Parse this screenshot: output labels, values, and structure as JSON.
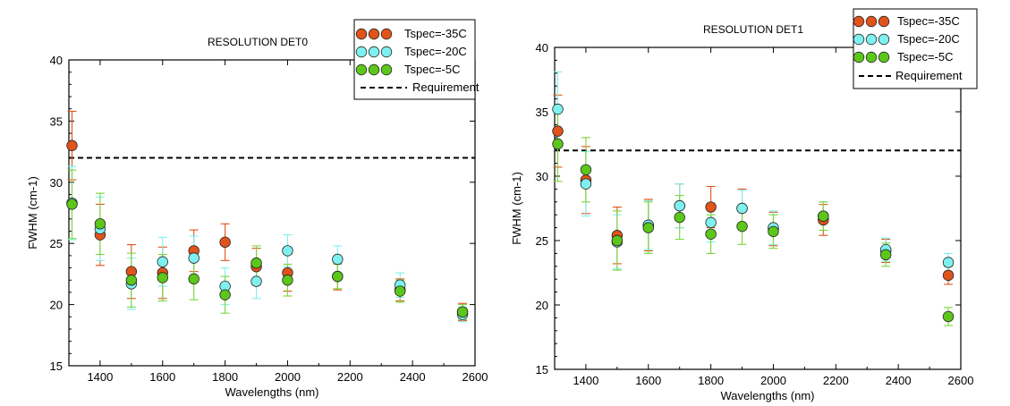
{
  "colors": {
    "tspec_m35": "#e0531a",
    "tspec_m20": "#7ff0f0",
    "tspec_m5": "#5cc71a",
    "err_m35": "#e0531a",
    "err_m20": "#7ff0f0",
    "err_m5": "#7ad63a",
    "requirement": "#000000",
    "marker_edge": "#222222"
  },
  "chart_data": [
    {
      "type": "scatter",
      "title": "RESOLUTION DET0",
      "xlabel": "Wavelengths (nm)",
      "ylabel": "FWHM (cm-1)",
      "xlim": [
        1300,
        2600
      ],
      "ylim": [
        15,
        40
      ],
      "xticks": [
        1400,
        1600,
        1800,
        2000,
        2200,
        2400,
        2600
      ],
      "yticks": [
        15,
        20,
        25,
        30,
        35,
        40
      ],
      "requirement": 32,
      "legend": [
        "Tspec=-35C",
        "Tspec=-20C",
        "Tspec=-5C",
        "Requirement"
      ],
      "legend_position": "top-right",
      "series": [
        {
          "name": "Tspec=-35C",
          "x": [
            1310,
            1400,
            1500,
            1600,
            1700,
            1800,
            1900,
            2000,
            2160,
            2360,
            2560
          ],
          "y": [
            33.0,
            25.7,
            22.7,
            22.6,
            24.4,
            25.1,
            23.1,
            22.6,
            22.3,
            21.2,
            19.4
          ],
          "err": [
            2.8,
            2.5,
            2.2,
            2.1,
            1.7,
            1.5,
            1.5,
            1.5,
            1.1,
            0.9,
            0.7
          ]
        },
        {
          "name": "Tspec=-20C",
          "x": [
            1310,
            1400,
            1500,
            1600,
            1700,
            1800,
            1900,
            2000,
            2160,
            2360,
            2560
          ],
          "y": [
            28.3,
            26.2,
            21.7,
            23.5,
            23.8,
            21.5,
            21.9,
            24.4,
            23.7,
            21.6,
            19.2
          ],
          "err": [
            3.0,
            2.6,
            2.1,
            2.0,
            1.8,
            1.5,
            1.4,
            1.3,
            1.1,
            1.0,
            0.6
          ]
        },
        {
          "name": "Tspec=-5C",
          "x": [
            1310,
            1400,
            1500,
            1600,
            1700,
            1800,
            1900,
            2000,
            2160,
            2360,
            2560
          ],
          "y": [
            28.2,
            26.6,
            22.0,
            22.2,
            22.1,
            20.8,
            23.4,
            22.0,
            22.3,
            21.1,
            19.4
          ],
          "err": [
            2.8,
            2.5,
            2.2,
            1.9,
            1.7,
            1.5,
            1.4,
            1.3,
            1.0,
            0.9,
            0.6
          ]
        }
      ]
    },
    {
      "type": "scatter",
      "title": "RESOLUTION DET1",
      "xlabel": "Wavelengths (nm)",
      "ylabel": "FWHM (cm-1)",
      "xlim": [
        1300,
        2600
      ],
      "ylim": [
        15,
        40
      ],
      "xticks": [
        1400,
        1600,
        1800,
        2000,
        2200,
        2400,
        2600
      ],
      "yticks": [
        15,
        20,
        25,
        30,
        35,
        40
      ],
      "requirement": 32,
      "legend": [
        "Tspec=-35C",
        "Tspec=-20C",
        "Tspec=-5C",
        "Requirement"
      ],
      "legend_position": "top-right",
      "series": [
        {
          "name": "Tspec=-35C",
          "x": [
            1310,
            1400,
            1500,
            1600,
            1700,
            1800,
            1900,
            2000,
            2160,
            2360,
            2560
          ],
          "y": [
            33.5,
            29.7,
            25.4,
            26.2,
            27.7,
            27.6,
            27.5,
            25.9,
            26.6,
            24.2,
            22.3
          ],
          "err": [
            2.8,
            2.6,
            2.2,
            2.0,
            1.7,
            1.6,
            1.5,
            1.3,
            1.2,
            0.9,
            0.7
          ]
        },
        {
          "name": "Tspec=-20C",
          "x": [
            1310,
            1400,
            1500,
            1600,
            1700,
            1800,
            1900,
            2000,
            2160,
            2360,
            2560
          ],
          "y": [
            35.2,
            29.4,
            24.9,
            26.2,
            27.7,
            26.4,
            27.5,
            26.0,
            26.9,
            24.3,
            23.3
          ],
          "err": [
            2.9,
            2.5,
            2.1,
            1.9,
            1.7,
            1.5,
            1.4,
            1.3,
            1.1,
            0.9,
            0.7
          ]
        },
        {
          "name": "Tspec=-5C",
          "x": [
            1310,
            1400,
            1500,
            1600,
            1700,
            1800,
            1900,
            2000,
            2160,
            2360,
            2560
          ],
          "y": [
            32.5,
            30.5,
            25.0,
            26.0,
            26.8,
            25.5,
            26.1,
            25.7,
            26.9,
            23.9,
            19.1
          ],
          "err": [
            2.9,
            2.5,
            2.3,
            2.0,
            1.7,
            1.5,
            1.4,
            1.3,
            1.1,
            0.9,
            0.7
          ]
        }
      ]
    }
  ]
}
